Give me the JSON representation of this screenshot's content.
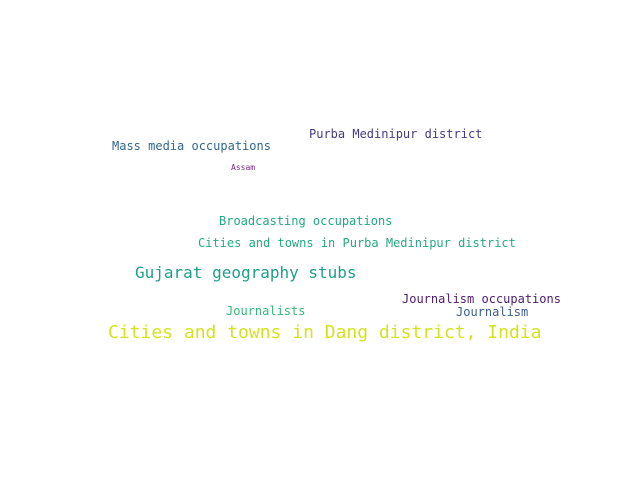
{
  "words": [
    {
      "text": "Purba Medinipur district",
      "color": "#443a83"
    },
    {
      "text": "Mass media occupations",
      "color": "#31688e"
    },
    {
      "text": "Assam",
      "color": "#7b2a8a"
    },
    {
      "text": "Broadcasting occupations",
      "color": "#22a884"
    },
    {
      "text": "Cities and towns in Purba Medinipur district",
      "color": "#26a983"
    },
    {
      "text": "Gujarat geography stubs",
      "color": "#1f9e89"
    },
    {
      "text": "Journalism occupations",
      "color": "#4b1c6e"
    },
    {
      "text": "Journalists",
      "color": "#35b779"
    },
    {
      "text": "Journalism",
      "color": "#3b5e8c"
    },
    {
      "text": "Cities and towns in Dang district, India",
      "color": "#d3e41f"
    }
  ]
}
